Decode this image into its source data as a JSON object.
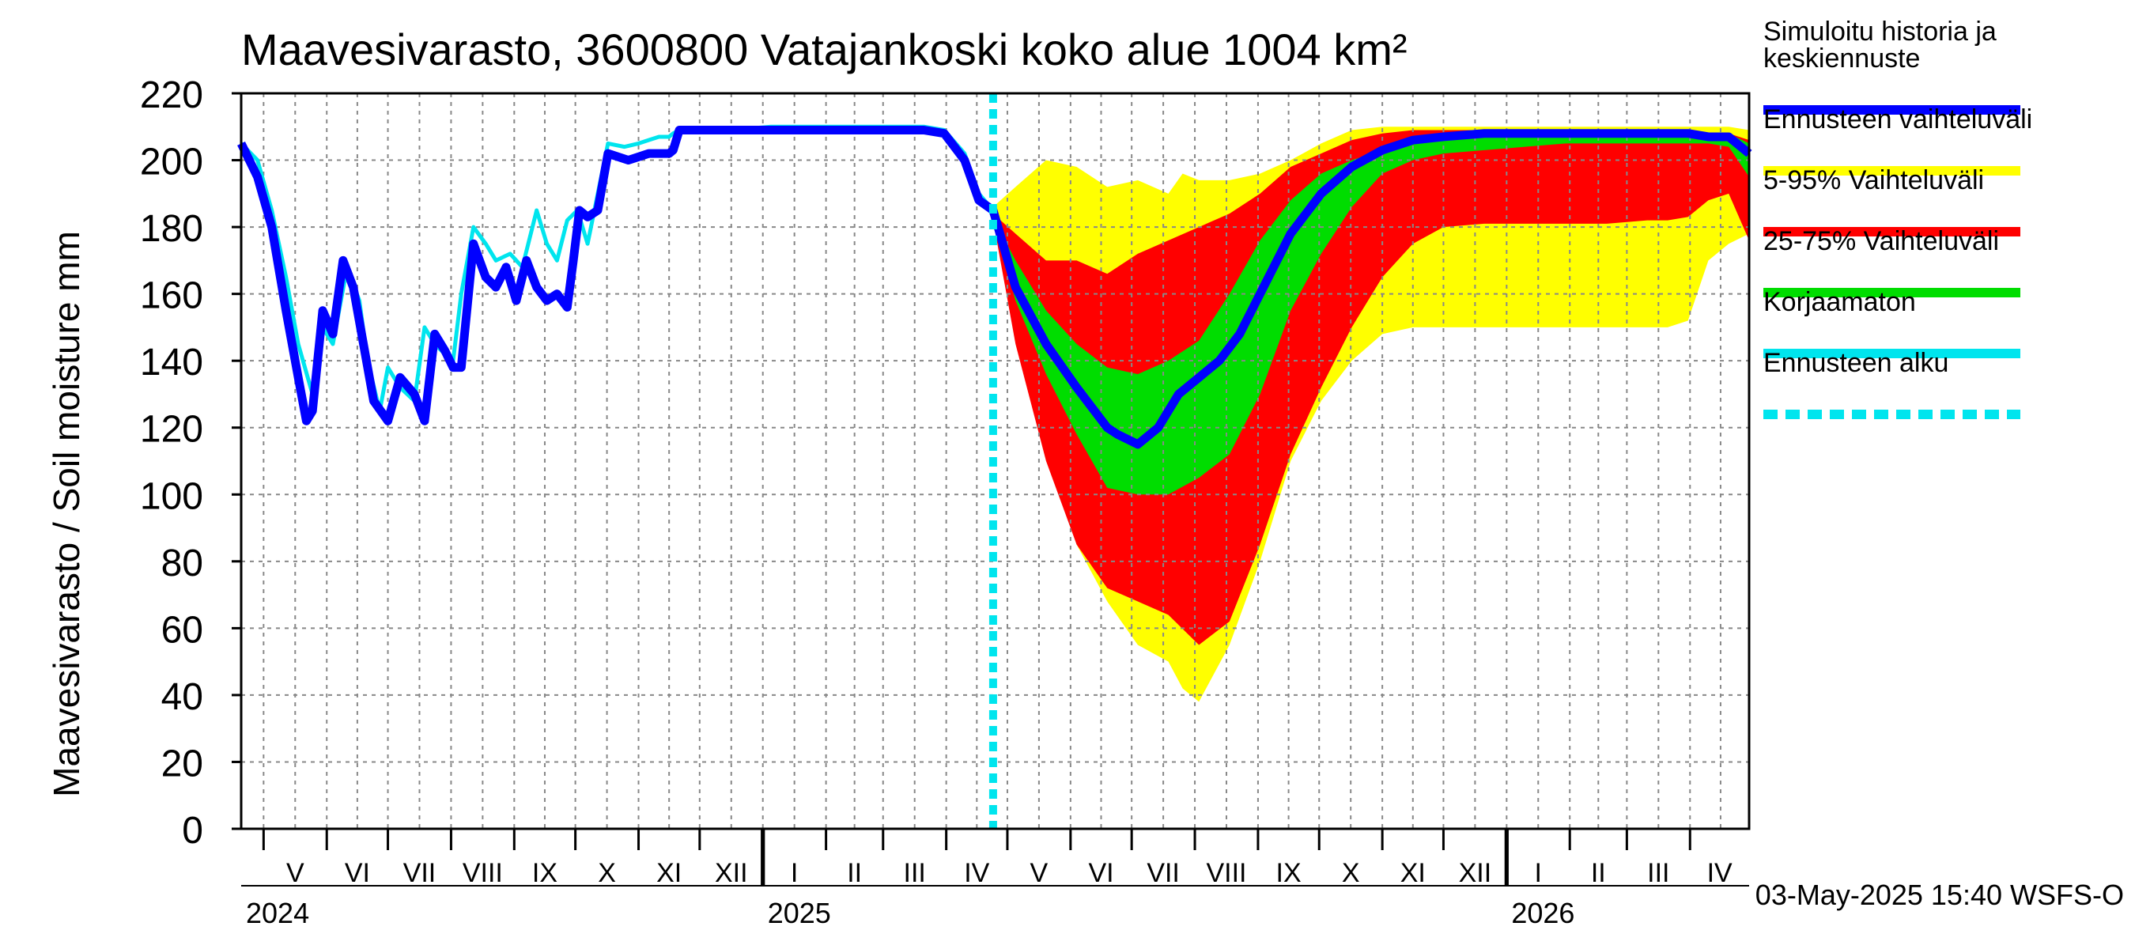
{
  "chart_data": {
    "type": "area",
    "title": "Maavesivarasto, 3600800 Vatajankoski koko alue 1004 km²",
    "ylabel": "Maavesivarasto / Soil moisture   mm",
    "ylim": [
      0,
      220
    ],
    "yticks": [
      0,
      20,
      40,
      60,
      80,
      100,
      120,
      140,
      160,
      180,
      200,
      220
    ],
    "x_unit": "days since 2024-04-20",
    "xlim": [
      0,
      740
    ],
    "forecast_start": 369,
    "grid": true,
    "months": [
      {
        "label": "V",
        "start": 11,
        "end": 42
      },
      {
        "label": "VI",
        "start": 42,
        "end": 72
      },
      {
        "label": "VII",
        "start": 72,
        "end": 103
      },
      {
        "label": "VIII",
        "start": 103,
        "end": 134
      },
      {
        "label": "IX",
        "start": 134,
        "end": 164
      },
      {
        "label": "X",
        "start": 164,
        "end": 195
      },
      {
        "label": "XI",
        "start": 195,
        "end": 225
      },
      {
        "label": "XII",
        "start": 225,
        "end": 256
      },
      {
        "label": "I",
        "start": 256,
        "end": 287
      },
      {
        "label": "II",
        "start": 287,
        "end": 315
      },
      {
        "label": "III",
        "start": 315,
        "end": 346
      },
      {
        "label": "IV",
        "start": 346,
        "end": 376
      },
      {
        "label": "V",
        "start": 376,
        "end": 407
      },
      {
        "label": "VI",
        "start": 407,
        "end": 437
      },
      {
        "label": "VII",
        "start": 437,
        "end": 468
      },
      {
        "label": "VIII",
        "start": 468,
        "end": 499
      },
      {
        "label": "IX",
        "start": 499,
        "end": 529
      },
      {
        "label": "X",
        "start": 529,
        "end": 560
      },
      {
        "label": "XI",
        "start": 560,
        "end": 590
      },
      {
        "label": "XII",
        "start": 590,
        "end": 621
      },
      {
        "label": "I",
        "start": 621,
        "end": 652
      },
      {
        "label": "II",
        "start": 652,
        "end": 680
      },
      {
        "label": "III",
        "start": 680,
        "end": 711
      },
      {
        "label": "IV",
        "start": 711,
        "end": 741
      }
    ],
    "years": [
      {
        "label": "2024",
        "x": 0
      },
      {
        "label": "2025",
        "x": 256
      },
      {
        "label": "2026",
        "x": 621
      }
    ],
    "series": [
      {
        "name": "Ennusteen vaihteluväli",
        "role": "band",
        "color": "#ffff00",
        "x": [
          369,
          380,
          395,
          410,
          425,
          440,
          455,
          462,
          470,
          485,
          500,
          515,
          530,
          545,
          560,
          575,
          590,
          610,
          630,
          650,
          670,
          690,
          700,
          710,
          720,
          730,
          740
        ],
        "upper": [
          186,
          192,
          200,
          198,
          192,
          194,
          190,
          196,
          194,
          194,
          196,
          200,
          205,
          209,
          210,
          210,
          210,
          210,
          210,
          210,
          210,
          210,
          210,
          210,
          210,
          210,
          209
        ],
        "lower": [
          182,
          150,
          112,
          85,
          68,
          55,
          50,
          42,
          38,
          55,
          80,
          110,
          128,
          140,
          148,
          150,
          150,
          150,
          150,
          150,
          150,
          150,
          150,
          152,
          170,
          175,
          178
        ]
      },
      {
        "name": "5-95% Vaihteluväli",
        "role": "band",
        "color": "#ff0000",
        "x": [
          369,
          380,
          395,
          410,
          425,
          440,
          455,
          470,
          485,
          500,
          515,
          530,
          545,
          560,
          575,
          590,
          610,
          630,
          650,
          670,
          690,
          700,
          710,
          720,
          730,
          740
        ],
        "upper": [
          184,
          178,
          170,
          170,
          166,
          172,
          176,
          180,
          184,
          190,
          198,
          202,
          206,
          208,
          209,
          209,
          209,
          209,
          209,
          209,
          209,
          209,
          208,
          208,
          208,
          206
        ],
        "lower": [
          182,
          145,
          110,
          85,
          72,
          68,
          64,
          55,
          62,
          85,
          112,
          132,
          150,
          165,
          175,
          180,
          181,
          181,
          181,
          181,
          182,
          182,
          183,
          188,
          190,
          176
        ]
      },
      {
        "name": "25-75% Vaihteluväli",
        "role": "band",
        "color": "#00dd00",
        "x": [
          369,
          380,
          395,
          410,
          425,
          440,
          455,
          470,
          485,
          500,
          515,
          530,
          545,
          560,
          575,
          590,
          610,
          630,
          650,
          670,
          690,
          710,
          720,
          730,
          740
        ],
        "upper": [
          183,
          170,
          155,
          145,
          138,
          136,
          140,
          146,
          160,
          176,
          188,
          196,
          200,
          203,
          205,
          206,
          207,
          208,
          208,
          208,
          208,
          208,
          208,
          208,
          205
        ],
        "lower": [
          182,
          158,
          136,
          118,
          102,
          100,
          100,
          105,
          112,
          130,
          155,
          172,
          186,
          196,
          200,
          202,
          203,
          204,
          205,
          205,
          205,
          205,
          205,
          204,
          195
        ]
      },
      {
        "name": "Korjaamaton",
        "role": "line",
        "color": "#00e5ee",
        "x": [
          0,
          8,
          15,
          22,
          28,
          35,
          40,
          45,
          52,
          58,
          62,
          68,
          72,
          78,
          85,
          90,
          95,
          100,
          104,
          108,
          114,
          120,
          125,
          132,
          138,
          145,
          150,
          155,
          160,
          165,
          170,
          175,
          180,
          188,
          195,
          200,
          205,
          210,
          212,
          215,
          220,
          225,
          230,
          240,
          260,
          290,
          320,
          335,
          345,
          355,
          362,
          369
        ],
        "y": [
          205,
          200,
          185,
          165,
          145,
          130,
          150,
          145,
          168,
          158,
          140,
          125,
          138,
          132,
          128,
          150,
          145,
          142,
          140,
          160,
          180,
          175,
          170,
          172,
          168,
          185,
          175,
          170,
          182,
          185,
          175,
          190,
          205,
          204,
          205,
          206,
          207,
          207,
          208,
          209,
          209,
          209,
          209,
          209,
          210,
          210,
          210,
          210,
          209,
          202,
          190,
          185
        ]
      },
      {
        "name": "Simuloitu historia ja keskiennuste",
        "role": "line",
        "color": "#0000ff",
        "x": [
          0,
          8,
          15,
          22,
          28,
          32,
          35,
          40,
          45,
          50,
          55,
          60,
          65,
          72,
          78,
          85,
          90,
          95,
          100,
          104,
          108,
          114,
          120,
          125,
          130,
          135,
          140,
          145,
          150,
          155,
          160,
          163,
          166,
          170,
          175,
          180,
          185,
          190,
          200,
          205,
          210,
          212,
          215,
          220,
          225,
          230,
          240,
          260,
          290,
          320,
          335,
          345,
          355,
          362,
          369,
          380,
          395,
          410,
          425,
          430,
          440,
          450,
          455,
          460,
          470,
          480,
          490,
          500,
          515,
          530,
          545,
          560,
          575,
          590,
          610,
          630,
          650,
          670,
          690,
          710,
          720,
          730,
          740
        ],
        "y": [
          205,
          195,
          180,
          155,
          135,
          122,
          125,
          155,
          148,
          170,
          162,
          145,
          128,
          122,
          135,
          130,
          122,
          148,
          143,
          138,
          138,
          175,
          165,
          162,
          168,
          158,
          170,
          162,
          158,
          160,
          156,
          170,
          185,
          183,
          185,
          202,
          201,
          200,
          202,
          202,
          202,
          203,
          209,
          209,
          209,
          209,
          209,
          209,
          209,
          209,
          209,
          208,
          200,
          188,
          185,
          162,
          145,
          132,
          120,
          118,
          115,
          120,
          125,
          130,
          135,
          140,
          148,
          160,
          178,
          190,
          198,
          203,
          206,
          207,
          208,
          208,
          208,
          208,
          208,
          208,
          207,
          207,
          202
        ]
      },
      {
        "name": "Ennusteen alku",
        "role": "vline",
        "color": "#00e5ee"
      }
    ],
    "legend": [
      {
        "label": "Simuloitu historia ja keskiennuste",
        "color": "#0000ff",
        "style": "solid"
      },
      {
        "label": "Ennusteen vaihteluväli",
        "color": "#ffff00",
        "style": "solid"
      },
      {
        "label": "5-95% Vaihteluväli",
        "color": "#ff0000",
        "style": "solid"
      },
      {
        "label": "25-75% Vaihteluväli",
        "color": "#00dd00",
        "style": "solid"
      },
      {
        "label": "Korjaamaton",
        "color": "#00e5ee",
        "style": "solid"
      },
      {
        "label": "Ennusteen alku",
        "color": "#00e5ee",
        "style": "dashed"
      }
    ],
    "legend_position": "right",
    "footer": "03-May-2025 15:40 WSFS-O"
  }
}
